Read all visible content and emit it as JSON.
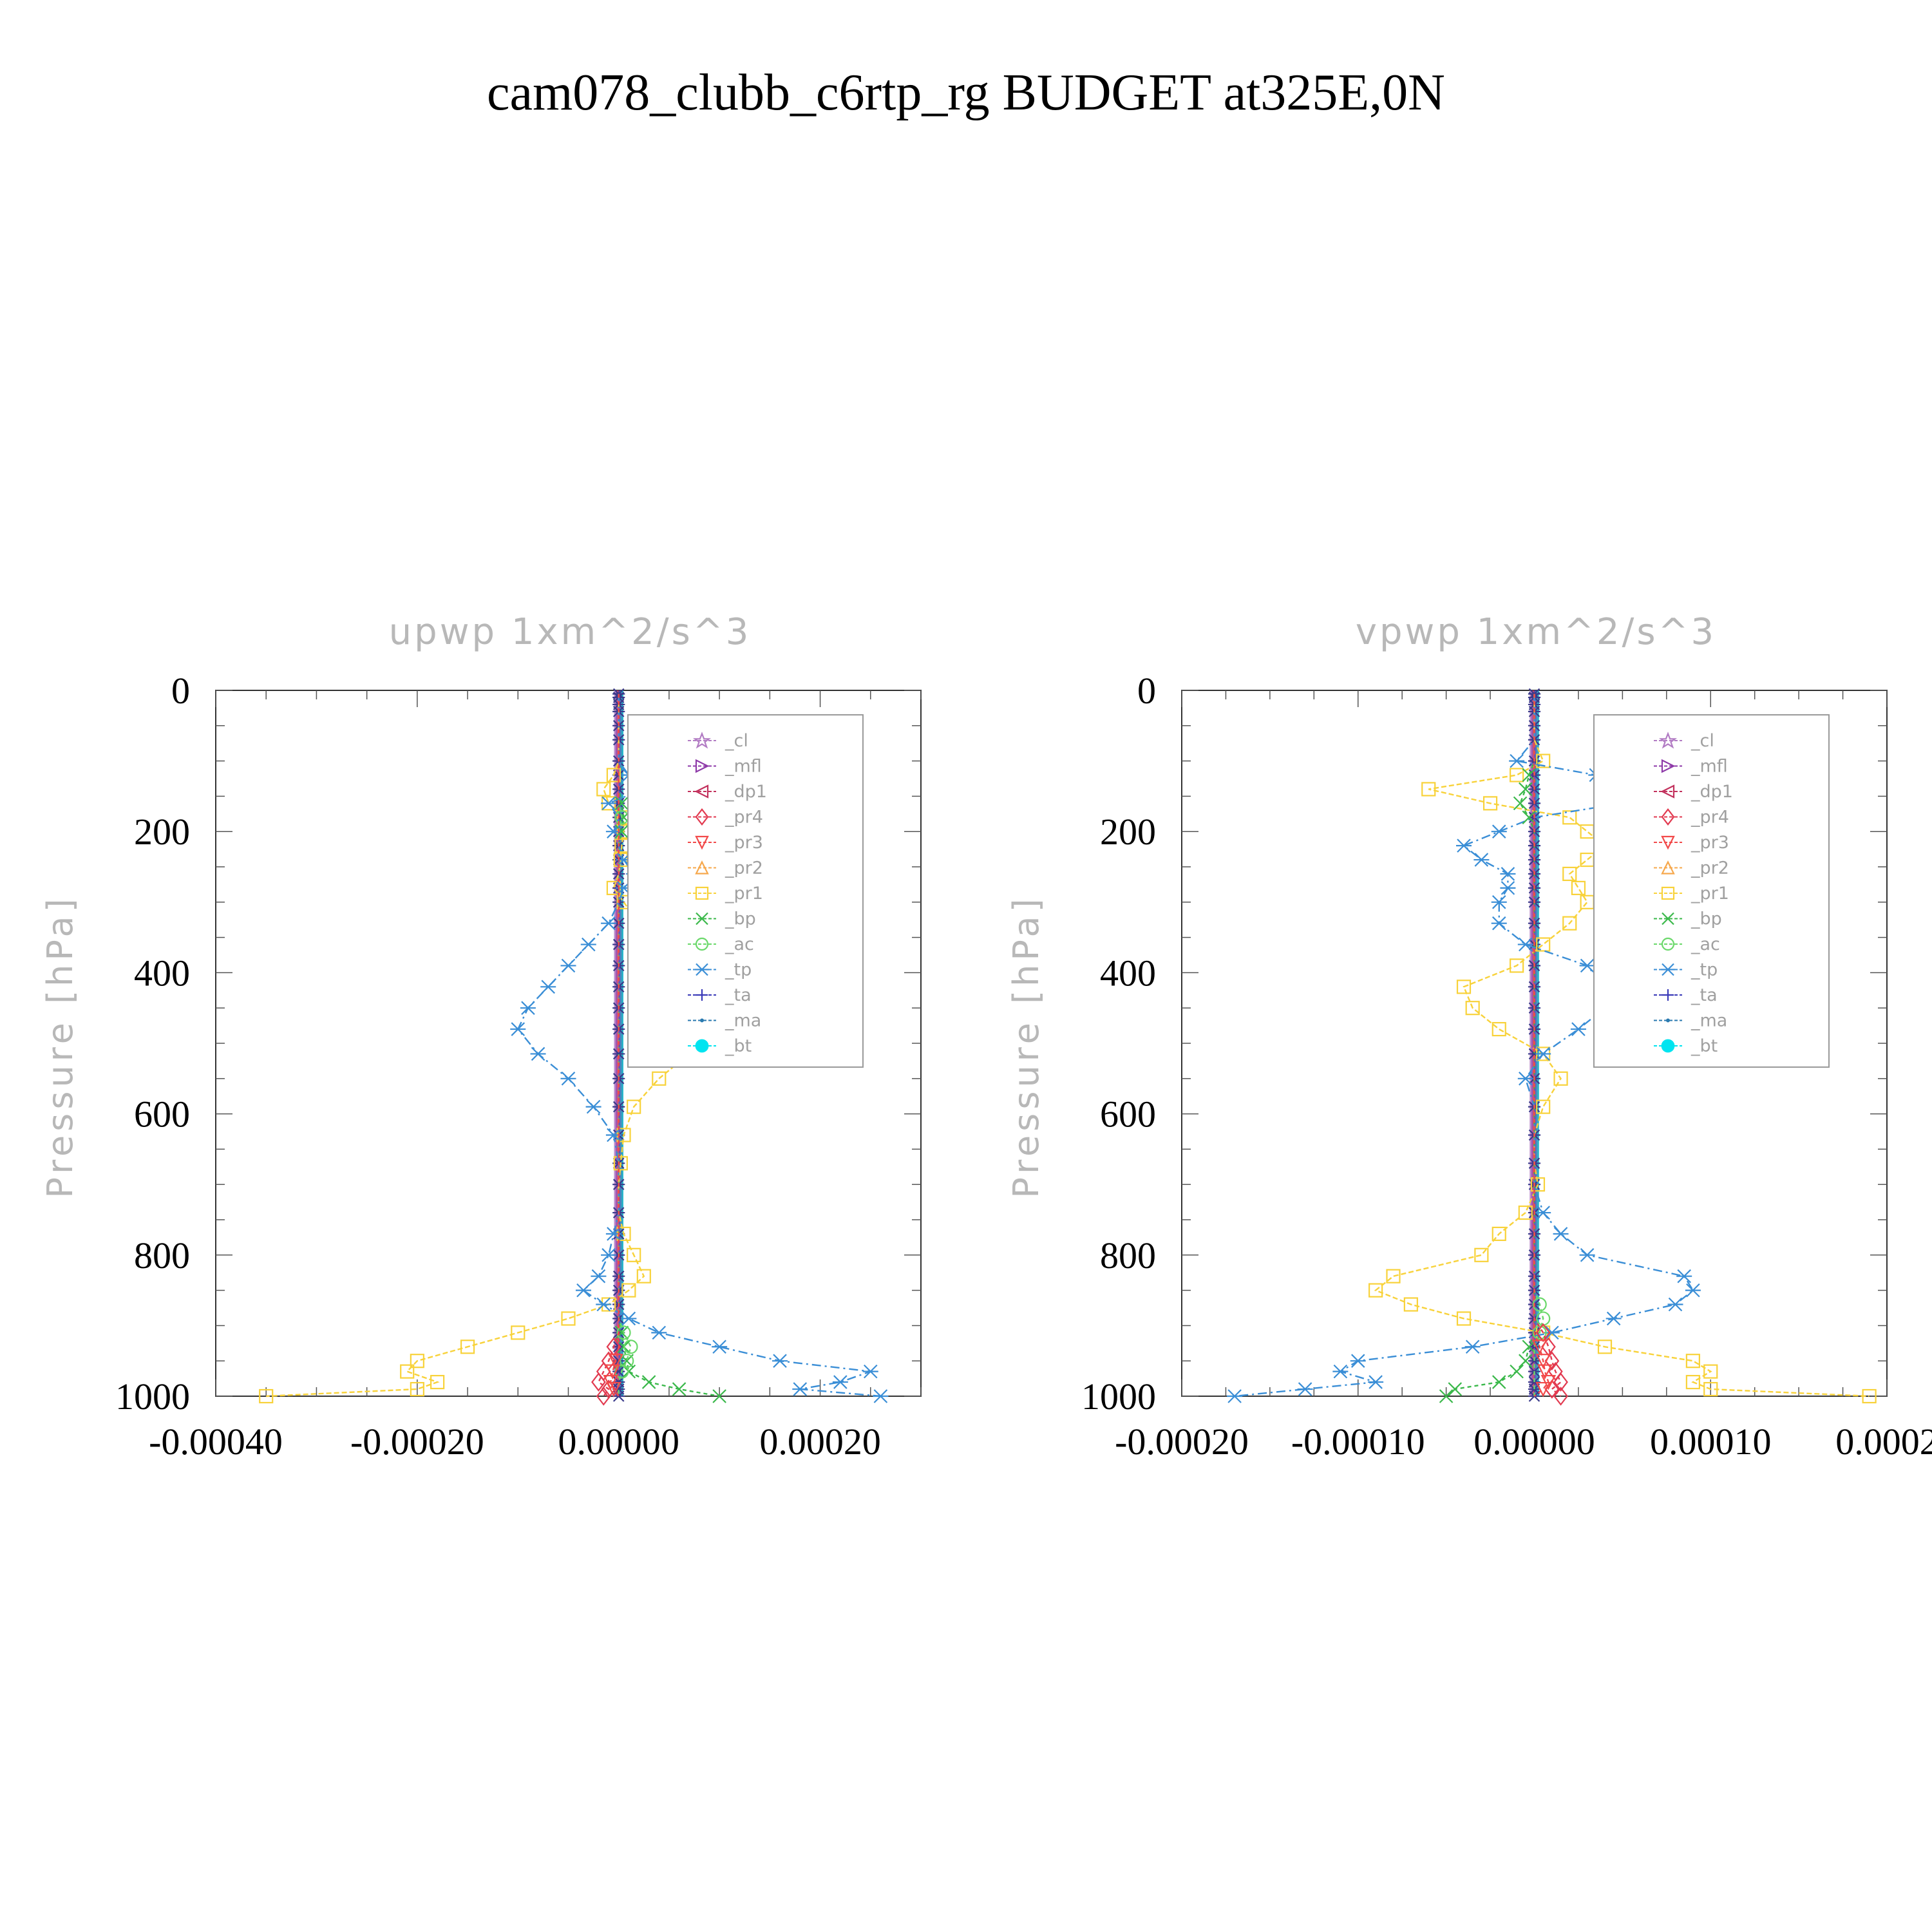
{
  "title": "cam078_clubb_c6rtp_rg  BUDGET at325E,0N",
  "legend_entries": [
    {
      "name": "_cl",
      "color": "#b27cc4",
      "marker": "star"
    },
    {
      "name": "_mfl",
      "color": "#8e3aa8",
      "marker": "tri-right"
    },
    {
      "name": "_dp1",
      "color": "#c2305c",
      "marker": "tri-left"
    },
    {
      "name": "_pr4",
      "color": "#e23a50",
      "marker": "diamond"
    },
    {
      "name": "_pr3",
      "color": "#f24a4a",
      "marker": "tri-down"
    },
    {
      "name": "_pr2",
      "color": "#f6a84c",
      "marker": "tri-up"
    },
    {
      "name": "_pr1",
      "color": "#f8d23a",
      "marker": "square"
    },
    {
      "name": "_bp",
      "color": "#3ab84a",
      "marker": "x"
    },
    {
      "name": "_ac",
      "color": "#6ad86a",
      "marker": "circle"
    },
    {
      "name": "_tp",
      "color": "#3a8ed6",
      "marker": "asterisk"
    },
    {
      "name": "_ta",
      "color": "#3a3ab8",
      "marker": "plus"
    },
    {
      "name": "_ma",
      "color": "#2a7ab0",
      "marker": "dot"
    },
    {
      "name": "_bt",
      "color": "#00e4f0",
      "marker": "filled-circle"
    }
  ],
  "chart_data": [
    {
      "type": "line",
      "title": "upwp   1xm^2/s^3",
      "xlabel": "",
      "ylabel": "Pressure  [hPa]",
      "xlim": [
        -0.0004,
        0.0003
      ],
      "ylim": [
        1000,
        0
      ],
      "xticks": [
        "-0.00040",
        "-0.00020",
        "0.00000",
        "0.00020"
      ],
      "xtick_values": [
        -0.0004,
        -0.0002,
        0.0,
        0.0002
      ],
      "yticks": [
        "0",
        "200",
        "400",
        "600",
        "800",
        "1000"
      ],
      "ytick_values": [
        0,
        200,
        400,
        600,
        800,
        1000
      ],
      "levels": [
        5,
        10,
        20,
        30,
        50,
        70,
        100,
        120,
        140,
        160,
        180,
        200,
        220,
        240,
        260,
        280,
        300,
        330,
        360,
        390,
        420,
        450,
        480,
        515,
        550,
        590,
        630,
        670,
        700,
        740,
        770,
        800,
        830,
        850,
        870,
        890,
        910,
        930,
        950,
        965,
        980,
        990,
        1000
      ],
      "series": [
        {
          "name": "_pr1",
          "values": [
            0,
            0,
            0,
            0,
            0,
            0,
            0,
            -5e-06,
            -1.5e-05,
            -1e-05,
            5e-06,
            5e-06,
            3e-06,
            2e-06,
            0,
            -5e-06,
            5e-06,
            2e-05,
            4e-05,
            6e-05,
            8e-05,
            9e-05,
            9e-05,
            7e-05,
            4e-05,
            1.5e-05,
            5e-06,
            2e-06,
            0,
            0,
            5e-06,
            1.5e-05,
            2.5e-05,
            1e-05,
            -1e-05,
            -5e-05,
            -0.0001,
            -0.00015,
            -0.0002,
            -0.00021,
            -0.00018,
            -0.0002,
            -0.00035
          ]
        },
        {
          "name": "_tp",
          "values": [
            0,
            0,
            0,
            0,
            0,
            0,
            0,
            1e-05,
            2.5e-05,
            -1e-05,
            0,
            -5e-06,
            0,
            5e-06,
            1.5e-05,
            5e-06,
            0,
            -1e-05,
            -3e-05,
            -5e-05,
            -7e-05,
            -9e-05,
            -0.0001,
            -8e-05,
            -5e-05,
            -2.5e-05,
            -5e-06,
            0,
            0,
            0,
            -5e-06,
            -1e-05,
            -2e-05,
            -3.5e-05,
            -1.5e-05,
            1e-05,
            4e-05,
            0.0001,
            0.00016,
            0.00025,
            0.00022,
            0.00018,
            0.00026
          ]
        },
        {
          "name": "_bp",
          "values": [
            0,
            0,
            0,
            0,
            0,
            0,
            0,
            0,
            0,
            3e-06,
            5e-06,
            3e-06,
            0,
            0,
            0,
            0,
            0,
            0,
            0,
            0,
            0,
            0,
            0,
            0,
            0,
            0,
            0,
            0,
            0,
            0,
            0,
            0,
            0,
            0,
            0,
            0,
            3e-06,
            5e-06,
            8e-06,
            1e-05,
            3e-05,
            6e-05,
            0.0001
          ]
        },
        {
          "name": "_ac",
          "values": [
            0,
            0,
            0,
            0,
            0,
            0,
            0,
            0,
            0,
            0,
            3e-06,
            0,
            0,
            0,
            0,
            0,
            0,
            0,
            0,
            0,
            0,
            0,
            0,
            0,
            0,
            0,
            0,
            0,
            0,
            0,
            0,
            0,
            0,
            0,
            0,
            0,
            5e-06,
            1.2e-05,
            8e-06,
            3e-06,
            0,
            0,
            0
          ]
        },
        {
          "name": "_pr4",
          "values": [
            0,
            0,
            0,
            0,
            0,
            0,
            0,
            0,
            0,
            0,
            0,
            0,
            0,
            0,
            0,
            0,
            0,
            0,
            0,
            0,
            0,
            0,
            0,
            0,
            0,
            0,
            0,
            0,
            0,
            0,
            0,
            0,
            0,
            0,
            0,
            0,
            0,
            -5e-06,
            -1e-05,
            -1.5e-05,
            -2e-05,
            -1e-05,
            -1.5e-05
          ]
        },
        {
          "name": "_pr3",
          "values": [
            0,
            0,
            0,
            0,
            0,
            0,
            0,
            0,
            0,
            0,
            0,
            0,
            0,
            0,
            0,
            0,
            0,
            0,
            0,
            0,
            0,
            0,
            0,
            0,
            0,
            0,
            0,
            0,
            0,
            0,
            0,
            0,
            0,
            0,
            0,
            0,
            0,
            0,
            -3e-06,
            -6e-06,
            -8e-06,
            -5e-06,
            0
          ]
        }
      ]
    },
    {
      "type": "line",
      "title": "vpwp   1xm^2/s^3",
      "xlabel": "",
      "ylabel": "Pressure  [hPa]",
      "xlim": [
        -0.0002,
        0.0002
      ],
      "ylim": [
        1000,
        0
      ],
      "xticks": [
        "-0.00020",
        "-0.00010",
        "0.00000",
        "0.00010",
        "0.0002"
      ],
      "xtick_values": [
        -0.0002,
        -0.0001,
        0.0,
        0.0001,
        0.0002
      ],
      "yticks": [
        "0",
        "200",
        "400",
        "600",
        "800",
        "1000"
      ],
      "ytick_values": [
        0,
        200,
        400,
        600,
        800,
        1000
      ],
      "levels": [
        5,
        10,
        20,
        30,
        50,
        70,
        100,
        120,
        140,
        160,
        180,
        200,
        220,
        240,
        260,
        280,
        300,
        330,
        360,
        390,
        420,
        450,
        480,
        515,
        550,
        590,
        630,
        670,
        700,
        740,
        770,
        800,
        830,
        850,
        870,
        890,
        910,
        930,
        950,
        965,
        980,
        990,
        1000
      ],
      "series": [
        {
          "name": "_pr1",
          "values": [
            0,
            0,
            0,
            0,
            0,
            0,
            5e-06,
            -1e-05,
            -6e-05,
            -2.5e-05,
            2e-05,
            3e-05,
            4e-05,
            3e-05,
            2e-05,
            2.5e-05,
            3e-05,
            2e-05,
            5e-06,
            -1e-05,
            -4e-05,
            -3.5e-05,
            -2e-05,
            5e-06,
            1.5e-05,
            5e-06,
            0,
            0,
            2e-06,
            -5e-06,
            -2e-05,
            -3e-05,
            -8e-05,
            -9e-05,
            -7e-05,
            -4e-05,
            5e-06,
            4e-05,
            9e-05,
            0.0001,
            9e-05,
            0.0001,
            0.00019
          ]
        },
        {
          "name": "_tp",
          "values": [
            0,
            0,
            0,
            0,
            0,
            0,
            -1e-05,
            3.5e-05,
            7e-05,
            5e-05,
            0,
            -2e-05,
            -4e-05,
            -3e-05,
            -1.5e-05,
            -1.5e-05,
            -2e-05,
            -2e-05,
            -5e-06,
            3e-05,
            4e-05,
            4e-05,
            2.5e-05,
            5e-06,
            -5e-06,
            0,
            0,
            0,
            0,
            5e-06,
            1.5e-05,
            3e-05,
            8.5e-05,
            9e-05,
            8e-05,
            4.5e-05,
            1e-05,
            -3.5e-05,
            -0.0001,
            -0.00011,
            -9e-05,
            -0.00013,
            -0.00017
          ]
        },
        {
          "name": "_bp",
          "values": [
            0,
            0,
            0,
            0,
            0,
            0,
            0,
            -3e-06,
            -5e-06,
            -8e-06,
            -3e-06,
            0,
            0,
            0,
            0,
            0,
            0,
            0,
            0,
            0,
            0,
            0,
            0,
            0,
            0,
            0,
            0,
            0,
            0,
            0,
            0,
            0,
            0,
            0,
            0,
            0,
            0,
            -3e-06,
            -5e-06,
            -1e-05,
            -2e-05,
            -4.5e-05,
            -5e-05
          ]
        },
        {
          "name": "_ac",
          "values": [
            0,
            0,
            0,
            0,
            0,
            0,
            0,
            0,
            0,
            0,
            0,
            0,
            0,
            0,
            0,
            0,
            0,
            0,
            0,
            0,
            0,
            0,
            0,
            0,
            0,
            0,
            0,
            0,
            0,
            0,
            0,
            0,
            0,
            0,
            3e-06,
            5e-06,
            3e-06,
            0,
            0,
            0,
            0,
            0,
            0
          ]
        },
        {
          "name": "_pr4",
          "values": [
            0,
            0,
            0,
            0,
            0,
            0,
            0,
            0,
            0,
            0,
            0,
            0,
            0,
            0,
            0,
            0,
            0,
            0,
            0,
            0,
            0,
            0,
            0,
            0,
            0,
            0,
            0,
            0,
            0,
            0,
            0,
            0,
            0,
            0,
            0,
            0,
            5e-06,
            8e-06,
            1e-05,
            1.2e-05,
            1.5e-05,
            1e-05,
            1.5e-05
          ]
        },
        {
          "name": "_pr3",
          "values": [
            0,
            0,
            0,
            0,
            0,
            0,
            0,
            0,
            0,
            0,
            0,
            0,
            0,
            0,
            0,
            0,
            0,
            0,
            0,
            0,
            0,
            0,
            0,
            0,
            0,
            0,
            0,
            0,
            0,
            0,
            0,
            0,
            0,
            0,
            0,
            0,
            0,
            3e-06,
            5e-06,
            6e-06,
            8e-06,
            5e-06,
            0
          ]
        }
      ]
    }
  ]
}
